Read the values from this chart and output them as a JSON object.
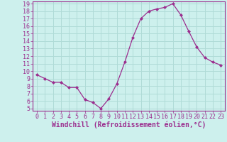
{
  "hours": [
    0,
    1,
    2,
    3,
    4,
    5,
    6,
    7,
    8,
    9,
    10,
    11,
    12,
    13,
    14,
    15,
    16,
    17,
    18,
    19,
    20,
    21,
    22,
    23
  ],
  "values": [
    9.5,
    9.0,
    8.5,
    8.5,
    7.8,
    7.8,
    6.2,
    5.8,
    5.0,
    6.3,
    8.3,
    11.2,
    14.5,
    17.0,
    18.0,
    18.3,
    18.5,
    19.0,
    17.5,
    15.3,
    13.2,
    11.8,
    11.2,
    10.8
  ],
  "line_color": "#9b2d8e",
  "marker": "D",
  "marker_size": 2,
  "bg_color": "#cdf0ed",
  "grid_color": "#b0dbd7",
  "xlabel": "Windchill (Refroidissement éolien,°C)",
  "ylim": [
    5,
    19
  ],
  "xlim": [
    -0.5,
    23.5
  ],
  "yticks": [
    5,
    6,
    7,
    8,
    9,
    10,
    11,
    12,
    13,
    14,
    15,
    16,
    17,
    18,
    19
  ],
  "xticks": [
    0,
    1,
    2,
    3,
    4,
    5,
    6,
    7,
    8,
    9,
    10,
    11,
    12,
    13,
    14,
    15,
    16,
    17,
    18,
    19,
    20,
    21,
    22,
    23
  ],
  "tick_color": "#9b2d8e",
  "axis_color": "#9b2d8e",
  "label_fontsize": 7,
  "tick_fontsize": 6
}
